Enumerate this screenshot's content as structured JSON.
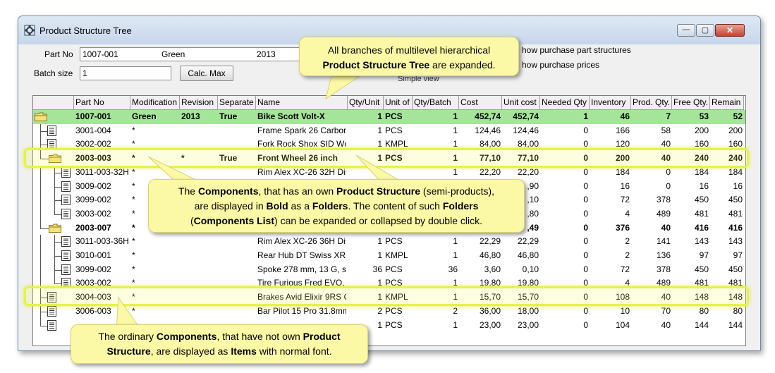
{
  "window": {
    "title": "Product Structure Tree",
    "min_glyph": "—",
    "max_glyph": "▢",
    "close_glyph": "✕"
  },
  "form": {
    "part_no_label": "Part No",
    "part_no_value": "1007-001",
    "modification_value": "Green",
    "revision_value": "2013",
    "batch_size_label": "Batch size",
    "batch_size_value": "1",
    "calc_max_label": "Calc. Max",
    "show_purchase_structures": "how purchase part structures",
    "show_purchase_prices": "how purchase prices",
    "simple_view": "Simple view"
  },
  "columns": [
    "Part No",
    "Modification",
    "Revision",
    "Separate",
    "Name",
    "Qty/Unit",
    "Unit of",
    "Qty/Batch",
    "Cost",
    "Unit cost",
    "Needed Qty",
    "Inventory",
    "Prod. Qty.",
    "Free Qty.",
    "Remain"
  ],
  "rows": [
    {
      "type": "root",
      "part": "1007-001",
      "mod": "Green",
      "rev": "2013",
      "sep": "True",
      "name": "Bike Scott Volt-X",
      "qty": "1",
      "unit": "PCS",
      "batch": "1",
      "cost": "452,74",
      "ucost": "452,74",
      "need": "1",
      "inv": "46",
      "prod": "7",
      "free": "53",
      "remain": "52"
    },
    {
      "type": "item",
      "part": "3001-004",
      "mod": "*",
      "rev": "",
      "sep": "",
      "name": "Frame Spark 26 Carbon,",
      "qty": "1",
      "unit": "PCS",
      "batch": "1",
      "cost": "124,46",
      "ucost": "124,46",
      "need": "0",
      "inv": "166",
      "prod": "58",
      "free": "200",
      "remain": "200"
    },
    {
      "type": "item",
      "part": "3002-002",
      "mod": "*",
      "rev": "",
      "sep": "",
      "name": "Fork Rock Shox SID Wc",
      "qty": "1",
      "unit": "KMPL",
      "batch": "1",
      "cost": "84,00",
      "ucost": "84,00",
      "need": "0",
      "inv": "120",
      "prod": "40",
      "free": "160",
      "remain": "160"
    },
    {
      "type": "folder",
      "part": "2003-003",
      "mod": "*",
      "rev": "*",
      "sep": "True",
      "name": "Front Wheel 26 inch",
      "qty": "1",
      "unit": "PCS",
      "batch": "1",
      "cost": "77,10",
      "ucost": "77,10",
      "need": "0",
      "inv": "200",
      "prod": "40",
      "free": "240",
      "remain": "240"
    },
    {
      "type": "sub",
      "part": "3011-003-32H",
      "mod": "*",
      "rev": "",
      "sep": "",
      "name": "Rim Alex XC-26 32H Disc",
      "qty": "",
      "unit": "",
      "batch": "1",
      "cost": "22,20",
      "ucost": "22,20",
      "need": "0",
      "inv": "184",
      "prod": "0",
      "free": "184",
      "remain": "184"
    },
    {
      "type": "sub",
      "part": "3009-002",
      "mod": "*",
      "rev": "",
      "sep": "",
      "name": "",
      "qty": "",
      "unit": "",
      "batch": "",
      "cost": "",
      "ucost": ",90",
      "need": "0",
      "inv": "16",
      "prod": "0",
      "free": "16",
      "remain": "16"
    },
    {
      "type": "sub",
      "part": "3099-002",
      "mod": "*",
      "rev": "",
      "sep": "",
      "name": "",
      "qty": "",
      "unit": "",
      "batch": "",
      "cost": "",
      "ucost": ",10",
      "need": "0",
      "inv": "72",
      "prod": "378",
      "free": "450",
      "remain": "450"
    },
    {
      "type": "sublast",
      "part": "3003-002",
      "mod": "*",
      "rev": "",
      "sep": "",
      "name": "",
      "qty": "",
      "unit": "",
      "batch": "",
      "cost": "",
      "ucost": ",80",
      "need": "0",
      "inv": "4",
      "prod": "489",
      "free": "481",
      "remain": "481"
    },
    {
      "type": "folder",
      "part": "2003-007",
      "mod": "*",
      "rev": "",
      "sep": "",
      "name": "",
      "qty": "",
      "unit": "",
      "batch": "",
      "cost": "",
      "ucost": ",49",
      "need": "0",
      "inv": "376",
      "prod": "40",
      "free": "416",
      "remain": "416"
    },
    {
      "type": "sub",
      "part": "3011-003-36H",
      "mod": "*",
      "rev": "",
      "sep": "",
      "name": "Rim Alex XC-26 36H Disc",
      "qty": "1",
      "unit": "PCS",
      "batch": "1",
      "cost": "22,29",
      "ucost": "22,29",
      "need": "0",
      "inv": "2",
      "prod": "141",
      "free": "143",
      "remain": "143"
    },
    {
      "type": "sub",
      "part": "3010-001",
      "mod": "*",
      "rev": "",
      "sep": "",
      "name": "Rear Hub DT Swiss XR-I",
      "qty": "1",
      "unit": "KMPL",
      "batch": "1",
      "cost": "46,80",
      "ucost": "46,80",
      "need": "0",
      "inv": "2",
      "prod": "136",
      "free": "97",
      "remain": "97"
    },
    {
      "type": "sub",
      "part": "3099-002",
      "mod": "*",
      "rev": "",
      "sep": "",
      "name": "Spoke 278 mm, 13 G, sta",
      "qty": "36",
      "unit": "PCS",
      "batch": "36",
      "cost": "3,60",
      "ucost": "0,10",
      "need": "0",
      "inv": "72",
      "prod": "378",
      "free": "450",
      "remain": "450"
    },
    {
      "type": "sublast",
      "part": "3003-002",
      "mod": "*",
      "rev": "",
      "sep": "",
      "name": "Tire Furious Fred EVO, 2",
      "qty": "1",
      "unit": "PCS",
      "batch": "1",
      "cost": "19,80",
      "ucost": "19,80",
      "need": "0",
      "inv": "4",
      "prod": "489",
      "free": "481",
      "remain": "481"
    },
    {
      "type": "item",
      "part": "3004-003",
      "mod": "*",
      "rev": "",
      "sep": "",
      "name": "Brakes Avid Elixir 9RS C.",
      "qty": "1",
      "unit": "KMPL",
      "batch": "1",
      "cost": "15,70",
      "ucost": "15,70",
      "need": "0",
      "inv": "108",
      "prod": "40",
      "free": "148",
      "remain": "148"
    },
    {
      "type": "item",
      "part": "3006-003",
      "mod": "*",
      "rev": "",
      "sep": "",
      "name": "Bar Pilot 15 Pro 31.8mm",
      "qty": "2",
      "unit": "PCS",
      "batch": "2",
      "cost": "36,00",
      "ucost": "18,00",
      "need": "0",
      "inv": "10",
      "prod": "70",
      "free": "80",
      "remain": "80"
    },
    {
      "type": "itemlast",
      "part": "",
      "mod": "",
      "rev": "",
      "sep": "",
      "name": "",
      "qty": "1",
      "unit": "PCS",
      "batch": "1",
      "cost": "23,00",
      "ucost": "23,00",
      "need": "0",
      "inv": "104",
      "prod": "40",
      "free": "144",
      "remain": "144"
    }
  ],
  "callouts": {
    "top_line1": "All branches of multilevel hierarchical",
    "top_line2_bold": "Product Structure Tree",
    "top_line2_rest": " are expanded.",
    "mid_a": "The ",
    "mid_b": "Components",
    "mid_c": ",  that has an own ",
    "mid_d": "Product Structure",
    "mid_e": " (semi-products),",
    "mid_f": "are displayed in ",
    "mid_g": "Bold",
    "mid_h": " as a ",
    "mid_i": "Folders",
    "mid_j": ". The content of such ",
    "mid_k": "Folders",
    "mid_l": "(",
    "mid_m": "Components List",
    "mid_n": ") can be expanded or collapsed by double click.",
    "bot_a": "The ordinary ",
    "bot_b": "Components",
    "bot_c": ", that have not own ",
    "bot_d": "Product",
    "bot_e": "Structure",
    "bot_f": ", are displayed as ",
    "bot_g": "Items",
    "bot_h": " with normal font."
  },
  "colors": {
    "root_row": "#a5e59a",
    "highlight": "#e6f24a",
    "callout_bg": "#fbf9a6"
  }
}
